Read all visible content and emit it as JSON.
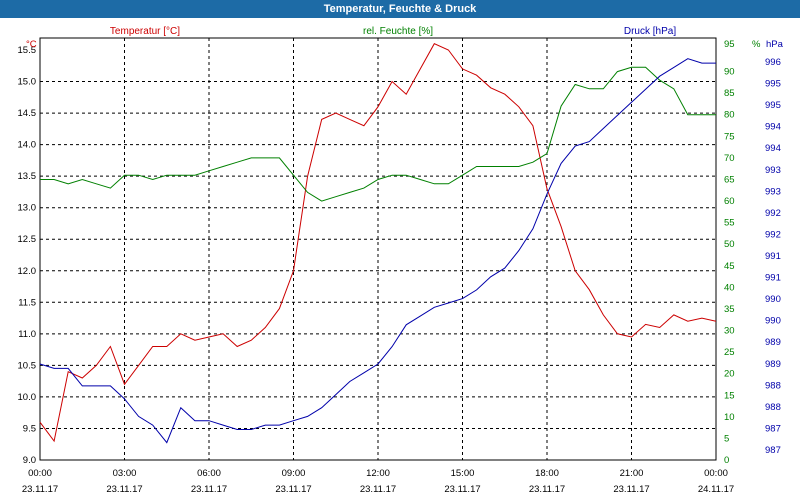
{
  "window": {
    "title": "Temperatur, Feuchte & Druck"
  },
  "colors": {
    "temperature": "#cc0000",
    "humidity": "#008000",
    "pressure": "#0000aa",
    "title_bar": "#1d6ba6",
    "grid": "#000000"
  },
  "chart_data": {
    "type": "line",
    "title": "Temperatur, Feuchte & Druck",
    "grid": true,
    "legend": "top",
    "x_time_labels": [
      "00:00",
      "03:00",
      "06:00",
      "09:00",
      "12:00",
      "15:00",
      "18:00",
      "21:00",
      "00:00"
    ],
    "x_date_labels": [
      "23.11.17",
      "23.11.17",
      "23.11.17",
      "23.11.17",
      "23.11.17",
      "23.11.17",
      "23.11.17",
      "23.11.17",
      "24.11.17"
    ],
    "x_hours_range": [
      0,
      24
    ],
    "axes": {
      "temperature": {
        "unit": "°C",
        "range": [
          9.0,
          15.5
        ],
        "ticks": [
          "15.5",
          "15.0",
          "14.5",
          "14.0",
          "13.5",
          "13.0",
          "12.5",
          "12.0",
          "11.5",
          "11.0",
          "10.5",
          "10.0",
          "9.5",
          "9.0"
        ]
      },
      "humidity": {
        "unit": "%",
        "range": [
          0,
          95
        ],
        "ticks": [
          "95",
          "90",
          "85",
          "80",
          "75",
          "70",
          "65",
          "60",
          "55",
          "50",
          "45",
          "40",
          "35",
          "30",
          "25",
          "20",
          "15",
          "10",
          "5",
          "0"
        ]
      },
      "pressure": {
        "unit": "hPa",
        "range": [
          986.8,
          996.2
        ],
        "ticks": [
          "996",
          "995",
          "995",
          "994",
          "994",
          "993",
          "993",
          "992",
          "992",
          "991",
          "991",
          "990",
          "990",
          "989",
          "989",
          "988",
          "988",
          "987",
          "987"
        ]
      }
    },
    "series": [
      {
        "name": "Temperatur [°C]",
        "axis": "temperature",
        "x": [
          0,
          0.5,
          1,
          1.5,
          2,
          2.5,
          3,
          3.5,
          4,
          4.5,
          5,
          5.5,
          6,
          6.5,
          7,
          7.5,
          8,
          8.5,
          9,
          9.2,
          9.5,
          10,
          10.5,
          11,
          11.5,
          12,
          12.5,
          13,
          13.5,
          14,
          14.5,
          15,
          15.5,
          16,
          16.5,
          17,
          17.5,
          18,
          18.5,
          19,
          19.5,
          20,
          20.5,
          21,
          21.5,
          22,
          22.5,
          23,
          23.5,
          24
        ],
        "values": [
          9.6,
          9.3,
          10.4,
          10.3,
          10.5,
          10.8,
          10.2,
          10.5,
          10.8,
          10.8,
          11.0,
          10.9,
          10.95,
          11.0,
          10.8,
          10.9,
          11.1,
          11.4,
          12.0,
          12.6,
          13.5,
          14.4,
          14.5,
          14.4,
          14.3,
          14.6,
          15.0,
          14.8,
          15.2,
          15.6,
          15.5,
          15.2,
          15.1,
          14.9,
          14.8,
          14.6,
          14.3,
          13.3,
          12.7,
          12.0,
          11.7,
          11.3,
          11.0,
          10.95,
          11.15,
          11.1,
          11.3,
          11.2,
          11.25,
          11.2
        ]
      },
      {
        "name": "rel. Feuchte [%]",
        "axis": "humidity",
        "x": [
          0,
          0.5,
          1,
          1.5,
          2,
          2.5,
          3,
          3.5,
          4,
          4.5,
          5,
          5.5,
          6,
          6.5,
          7,
          7.5,
          8,
          8.5,
          9,
          9.5,
          10,
          10.5,
          11,
          11.5,
          12,
          12.5,
          13,
          13.5,
          14,
          14.5,
          15,
          15.5,
          16,
          16.5,
          17,
          17.5,
          18,
          18.5,
          19,
          19.5,
          20,
          20.5,
          21,
          21.5,
          22,
          22.5,
          23,
          23.5,
          24
        ],
        "values": [
          65,
          65,
          64,
          65,
          64,
          63,
          66,
          66,
          65,
          66,
          66,
          66,
          67,
          68,
          69,
          70,
          70,
          70,
          66,
          62,
          60,
          61,
          62,
          63,
          65,
          66,
          66,
          65,
          64,
          64,
          66,
          68,
          68,
          68,
          68,
          69,
          71,
          82,
          87,
          86,
          86,
          90,
          91,
          91,
          88,
          86,
          80,
          80,
          80
        ]
      },
      {
        "name": "Druck [hPa]",
        "axis": "pressure",
        "x": [
          0,
          0.5,
          1,
          1.5,
          2,
          2.5,
          3,
          3.5,
          4,
          4.5,
          5,
          5.5,
          6,
          6.5,
          7,
          7.5,
          8,
          8.5,
          9,
          9.5,
          10,
          10.5,
          11,
          11.5,
          12,
          12.5,
          13,
          13.5,
          14,
          14.5,
          15,
          15.5,
          16,
          16.5,
          17,
          17.5,
          18,
          18.5,
          19,
          19.5,
          20,
          20.5,
          21,
          21.5,
          22,
          22.5,
          23,
          23.5,
          24
        ],
        "values": [
          989.0,
          988.9,
          988.9,
          988.5,
          988.5,
          988.5,
          988.2,
          987.8,
          987.6,
          987.2,
          988.0,
          987.7,
          987.7,
          987.6,
          987.5,
          987.5,
          987.6,
          987.6,
          987.7,
          987.8,
          988.0,
          988.3,
          988.6,
          988.8,
          989.0,
          989.4,
          989.9,
          990.1,
          990.3,
          990.4,
          990.5,
          990.7,
          991.0,
          991.2,
          991.6,
          992.1,
          992.9,
          993.6,
          994.0,
          994.1,
          994.4,
          994.7,
          995.0,
          995.3,
          995.6,
          995.8,
          996.0,
          995.9,
          995.9
        ]
      }
    ]
  }
}
